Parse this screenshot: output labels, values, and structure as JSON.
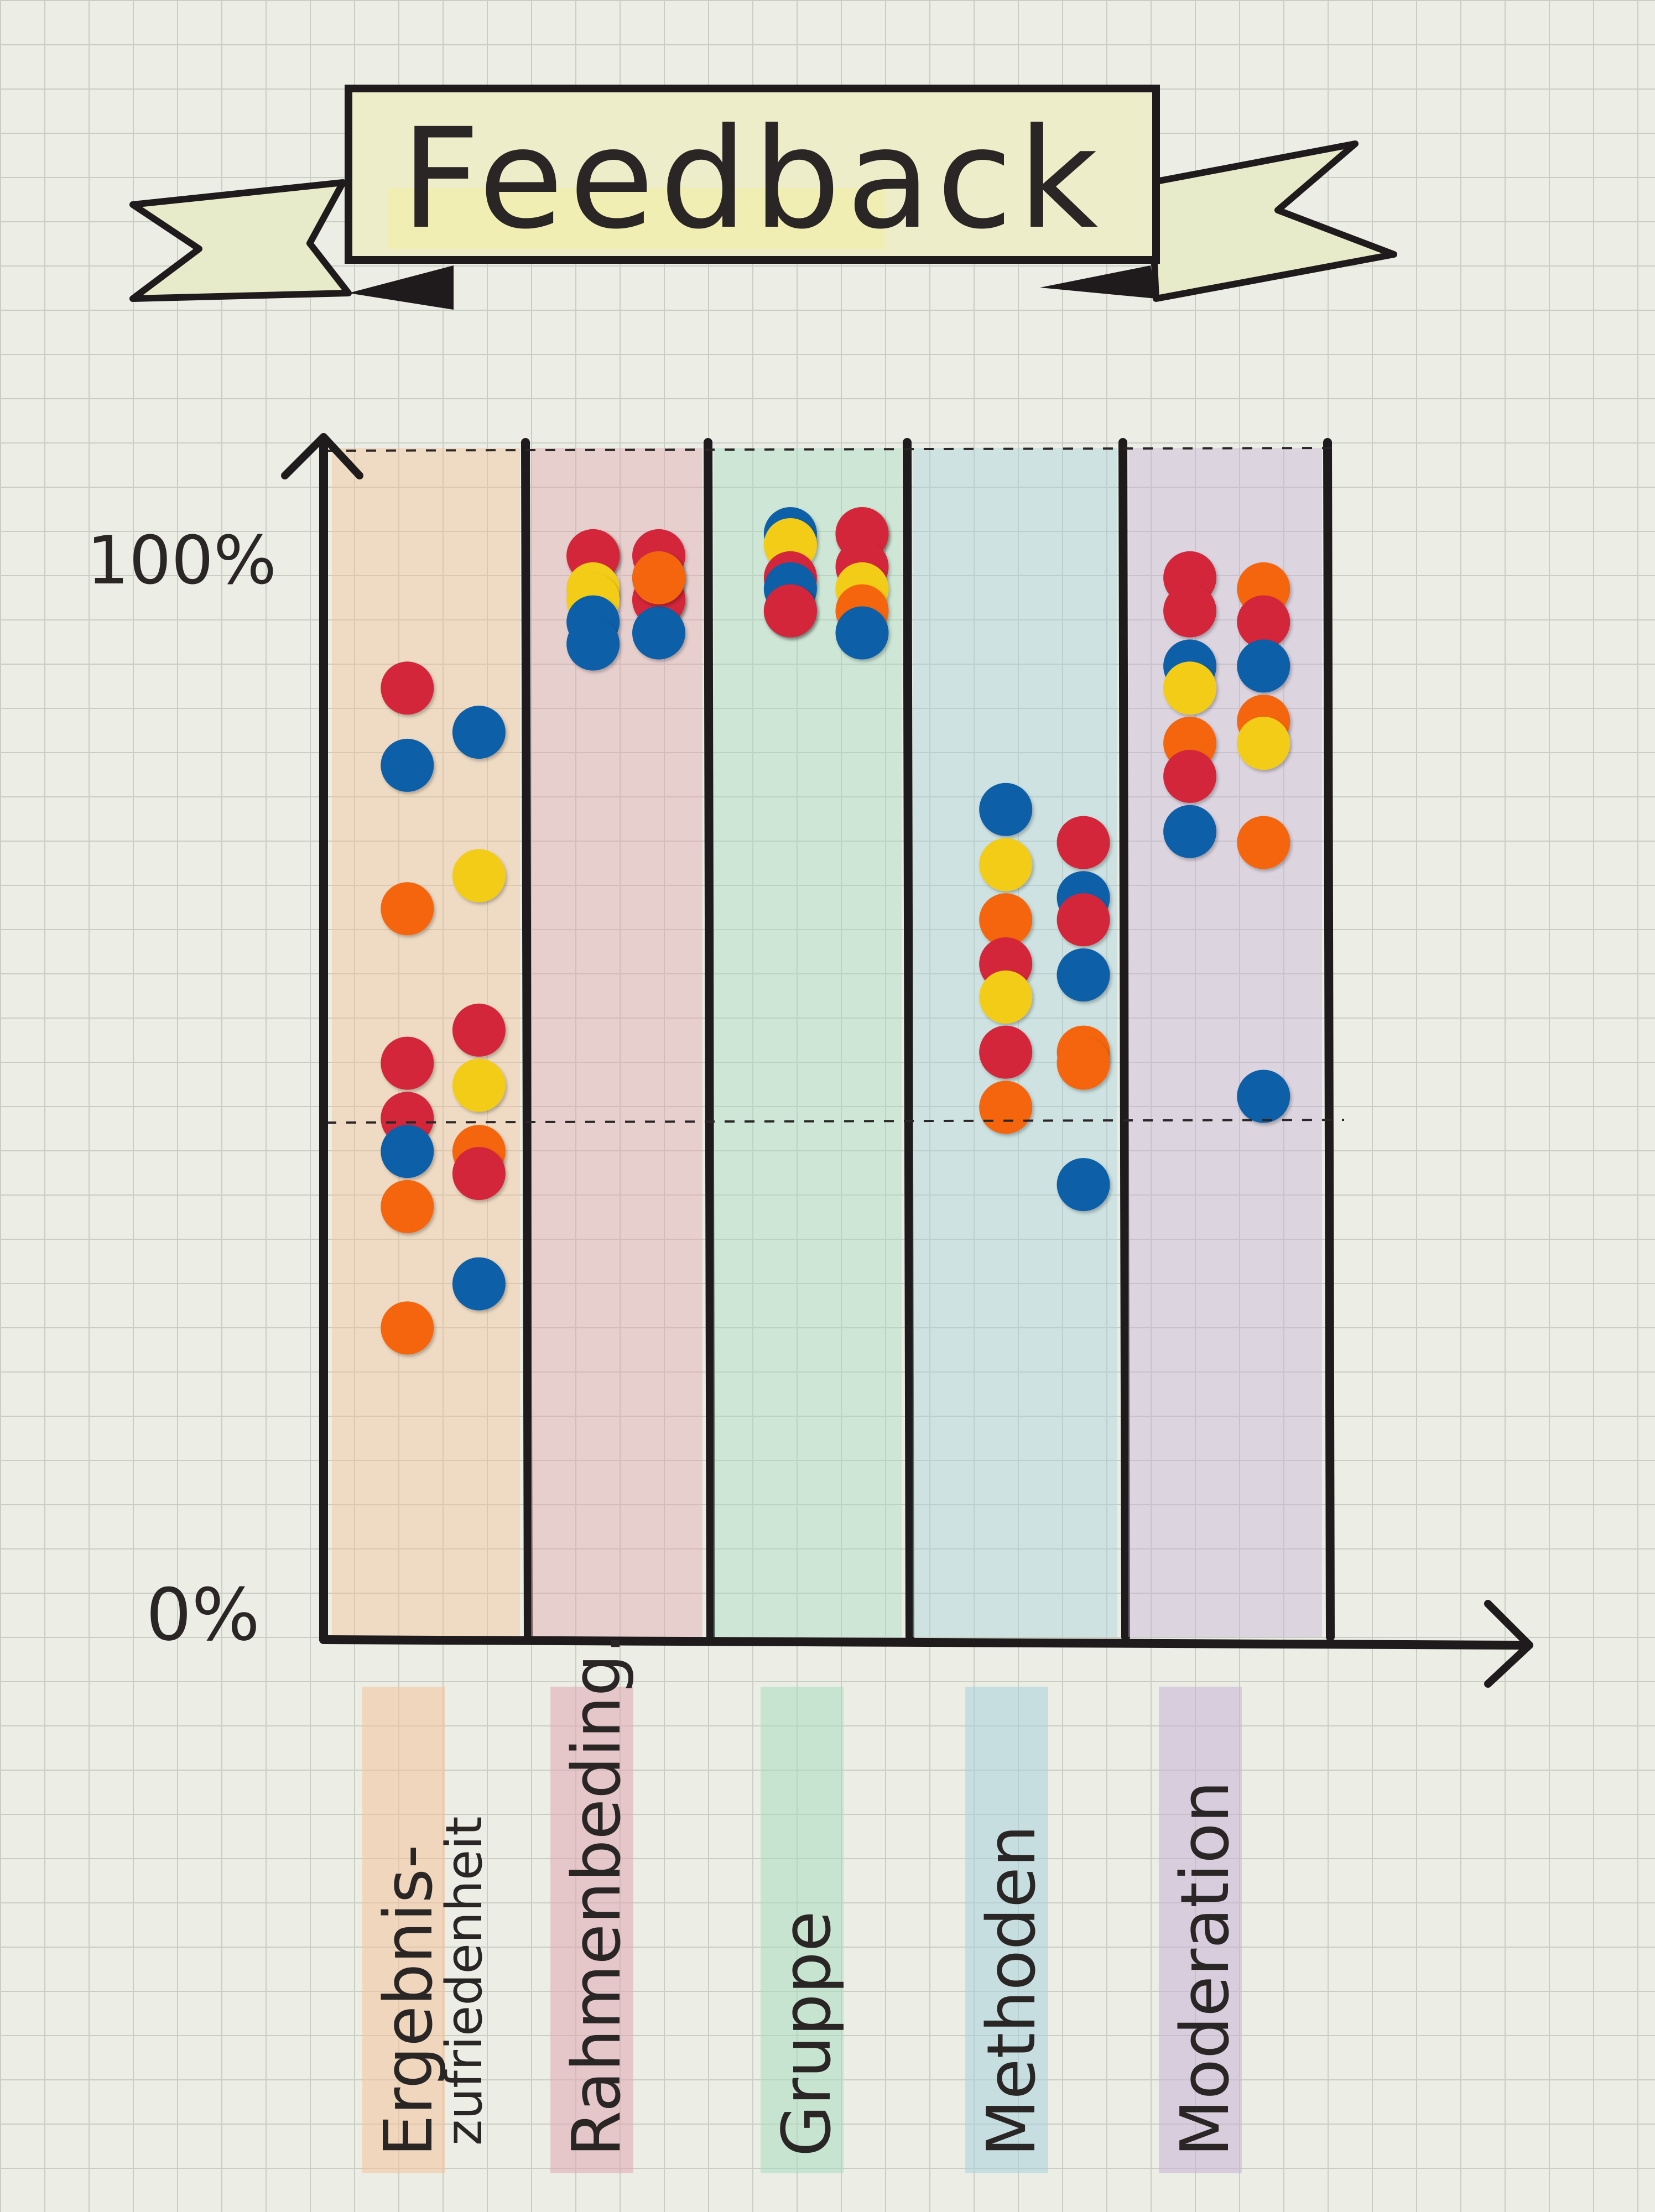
{
  "title": "Feedback",
  "y_axis": {
    "top_label": "100%",
    "bottom_label": "0%"
  },
  "columns": [
    {
      "label": "Ergebnis-",
      "label2": "zufriedenheit",
      "tint": "#f3c39a"
    },
    {
      "label": "Rahmenbeding.",
      "tint": "#e2a8b2"
    },
    {
      "label": "Gruppe",
      "tint": "#a9dcc0"
    },
    {
      "label": "Methoden",
      "tint": "#a9d2dc"
    },
    {
      "label": "Moderation",
      "tint": "#c9b3d6"
    }
  ],
  "dot_colors": {
    "red": "#d3263a",
    "orange": "#f4650f",
    "yellow": "#f2cc16",
    "blue": "#0d5fa8"
  },
  "dots": [
    {
      "column": 0,
      "value": 86,
      "color": "red"
    },
    {
      "column": 0,
      "value": 82,
      "color": "blue"
    },
    {
      "column": 0,
      "value": 79,
      "color": "blue"
    },
    {
      "column": 0,
      "value": 69,
      "color": "yellow"
    },
    {
      "column": 0,
      "value": 66,
      "color": "orange"
    },
    {
      "column": 0,
      "value": 55,
      "color": "red"
    },
    {
      "column": 0,
      "value": 52,
      "color": "red"
    },
    {
      "column": 0,
      "value": 50,
      "color": "yellow"
    },
    {
      "column": 0,
      "value": 47,
      "color": "red"
    },
    {
      "column": 0,
      "value": 44,
      "color": "orange"
    },
    {
      "column": 0,
      "value": 44,
      "color": "blue"
    },
    {
      "column": 0,
      "value": 42,
      "color": "red"
    },
    {
      "column": 0,
      "value": 39,
      "color": "orange"
    },
    {
      "column": 0,
      "value": 32,
      "color": "blue"
    },
    {
      "column": 0,
      "value": 28,
      "color": "orange"
    },
    {
      "column": 1,
      "value": 98,
      "color": "orange"
    },
    {
      "column": 1,
      "value": 98,
      "color": "red"
    },
    {
      "column": 1,
      "value": 98,
      "color": "red"
    },
    {
      "column": 1,
      "value": 96,
      "color": "blue"
    },
    {
      "column": 1,
      "value": 95,
      "color": "yellow"
    },
    {
      "column": 1,
      "value": 94,
      "color": "orange"
    },
    {
      "column": 1,
      "value": 94,
      "color": "yellow"
    },
    {
      "column": 1,
      "value": 94,
      "color": "red"
    },
    {
      "column": 1,
      "value": 92,
      "color": "blue"
    },
    {
      "column": 1,
      "value": 91,
      "color": "blue"
    },
    {
      "column": 1,
      "value": 90,
      "color": "blue"
    },
    {
      "column": 1,
      "value": 96,
      "color": "orange"
    },
    {
      "column": 2,
      "value": 100,
      "color": "orange"
    },
    {
      "column": 2,
      "value": 100,
      "color": "blue"
    },
    {
      "column": 2,
      "value": 100,
      "color": "red"
    },
    {
      "column": 2,
      "value": 99,
      "color": "yellow"
    },
    {
      "column": 2,
      "value": 97,
      "color": "red"
    },
    {
      "column": 2,
      "value": 96,
      "color": "red"
    },
    {
      "column": 2,
      "value": 95,
      "color": "yellow"
    },
    {
      "column": 2,
      "value": 95,
      "color": "blue"
    },
    {
      "column": 2,
      "value": 93,
      "color": "orange"
    },
    {
      "column": 2,
      "value": 93,
      "color": "blue"
    },
    {
      "column": 2,
      "value": 91,
      "color": "blue"
    },
    {
      "column": 2,
      "value": 93,
      "color": "red"
    },
    {
      "column": 3,
      "value": 75,
      "color": "blue"
    },
    {
      "column": 3,
      "value": 72,
      "color": "red"
    },
    {
      "column": 3,
      "value": 70,
      "color": "yellow"
    },
    {
      "column": 3,
      "value": 67,
      "color": "blue"
    },
    {
      "column": 3,
      "value": 65,
      "color": "orange"
    },
    {
      "column": 3,
      "value": 65,
      "color": "red"
    },
    {
      "column": 3,
      "value": 61,
      "color": "red"
    },
    {
      "column": 3,
      "value": 60,
      "color": "blue"
    },
    {
      "column": 3,
      "value": 58,
      "color": "yellow"
    },
    {
      "column": 3,
      "value": 53,
      "color": "orange"
    },
    {
      "column": 3,
      "value": 53,
      "color": "red"
    },
    {
      "column": 3,
      "value": 52,
      "color": "orange"
    },
    {
      "column": 3,
      "value": 48,
      "color": "orange"
    },
    {
      "column": 3,
      "value": 41,
      "color": "blue"
    },
    {
      "column": 4,
      "value": 96,
      "color": "red"
    },
    {
      "column": 4,
      "value": 95,
      "color": "orange"
    },
    {
      "column": 4,
      "value": 93,
      "color": "red"
    },
    {
      "column": 4,
      "value": 92,
      "color": "red"
    },
    {
      "column": 4,
      "value": 88,
      "color": "blue"
    },
    {
      "column": 4,
      "value": 88,
      "color": "blue"
    },
    {
      "column": 4,
      "value": 86,
      "color": "yellow"
    },
    {
      "column": 4,
      "value": 83,
      "color": "orange"
    },
    {
      "column": 4,
      "value": 81,
      "color": "orange"
    },
    {
      "column": 4,
      "value": 81,
      "color": "yellow"
    },
    {
      "column": 4,
      "value": 78,
      "color": "red"
    },
    {
      "column": 4,
      "value": 72,
      "color": "orange"
    },
    {
      "column": 4,
      "value": 73,
      "color": "blue"
    },
    {
      "column": 4,
      "value": 49,
      "color": "blue"
    }
  ]
}
